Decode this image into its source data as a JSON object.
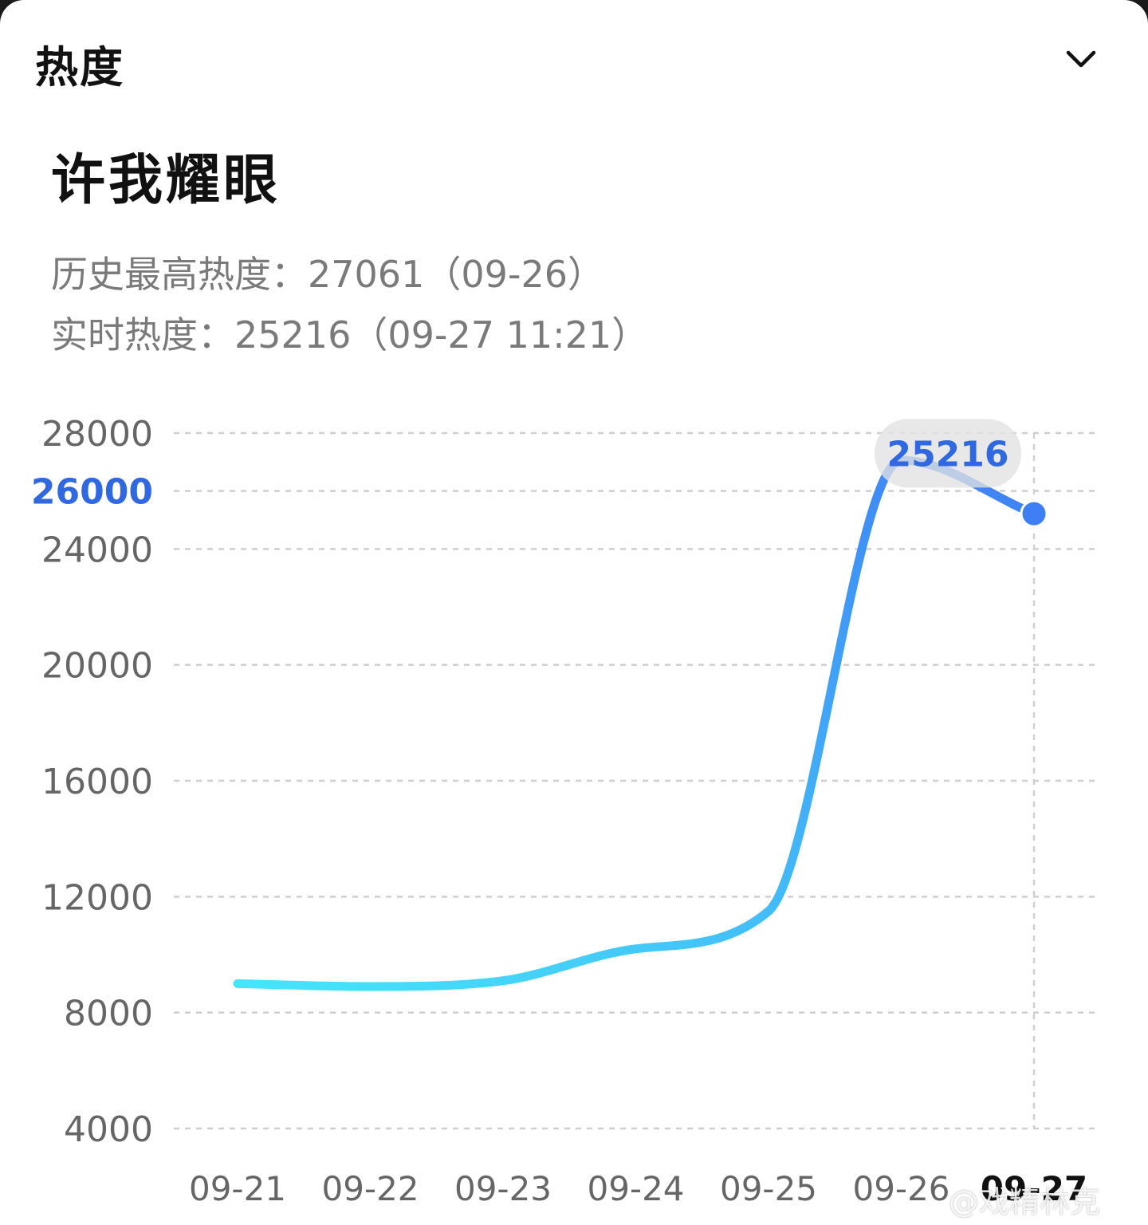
{
  "header": {
    "section_title": "热度",
    "dropdown_icon": "chevron-down-icon"
  },
  "title": "许我耀眼",
  "stats": {
    "peak": "历史最高热度：27061（09-26）",
    "realtime": "实时热度：25216（09-27 11:21）"
  },
  "watermark": "@戏精林克",
  "colors": {
    "line_start": "#45e6fa",
    "line_end": "#3f7ff5",
    "highlight": "#2f68e0",
    "tick": "#666666",
    "grid": "#cfcfcf"
  },
  "chart_data": {
    "type": "line",
    "categories": [
      "09-21",
      "09-22",
      "09-23",
      "09-24",
      "09-25",
      "09-26",
      "09-27"
    ],
    "x": [
      "09-21",
      "09-22",
      "09-23",
      "09-24",
      "09-25",
      "09-26",
      "09-27"
    ],
    "values": [
      9000,
      8900,
      9100,
      10200,
      11500,
      27061,
      25216
    ],
    "y_ticks": [
      4000,
      8000,
      12000,
      16000,
      20000,
      24000,
      26000,
      28000
    ],
    "highlight_tick": 26000,
    "ylim": [
      4000,
      28000
    ],
    "grid": true,
    "active_point": {
      "x": "09-27",
      "value": 25216,
      "label": "25216"
    },
    "title": "",
    "xlabel": "",
    "ylabel": ""
  }
}
